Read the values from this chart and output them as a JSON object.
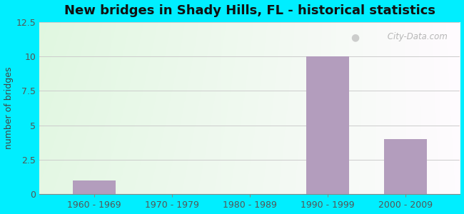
{
  "title": "New bridges in Shady Hills, FL - historical statistics",
  "categories": [
    "1960 - 1969",
    "1970 - 1979",
    "1980 - 1989",
    "1990 - 1999",
    "2000 - 2009"
  ],
  "values": [
    1,
    0,
    0,
    10,
    4
  ],
  "bar_color": "#b39dbd",
  "ylabel": "number of bridges",
  "ylim": [
    0,
    12.5
  ],
  "yticks": [
    0,
    2.5,
    5,
    7.5,
    10,
    12.5
  ],
  "background_outer": "#00eeff",
  "title_fontsize": 13,
  "axis_label_fontsize": 9,
  "tick_fontsize": 9,
  "watermark": " City-Data.com"
}
